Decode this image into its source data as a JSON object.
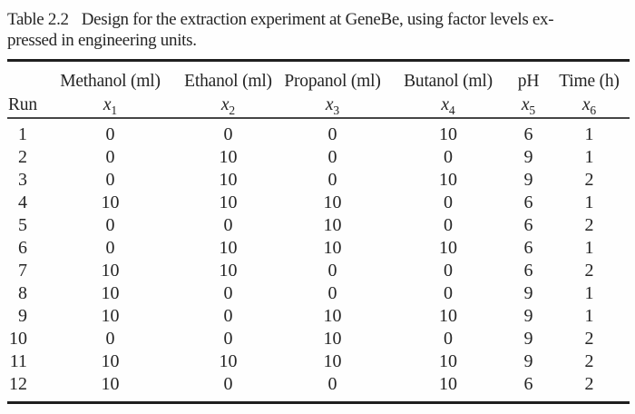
{
  "caption": {
    "label": "Table 2.2",
    "line1": "Design for the extraction experiment at GeneBe, using factor levels ex-",
    "line2": "pressed in engineering units."
  },
  "table": {
    "columns": [
      {
        "name": "",
        "var": "",
        "sub": "",
        "run_label": "Run"
      },
      {
        "name": "Methanol (ml)",
        "var": "x",
        "sub": "1"
      },
      {
        "name": "Ethanol (ml)",
        "var": "x",
        "sub": "2"
      },
      {
        "name": "Propanol (ml)",
        "var": "x",
        "sub": "3"
      },
      {
        "name": "Butanol (ml)",
        "var": "x",
        "sub": "4"
      },
      {
        "name": "pH",
        "var": "x",
        "sub": "5"
      },
      {
        "name": "Time (h)",
        "var": "x",
        "sub": "6"
      }
    ],
    "rows": [
      {
        "run": "1",
        "v": [
          "0",
          "0",
          "0",
          "10",
          "6",
          "1"
        ]
      },
      {
        "run": "2",
        "v": [
          "0",
          "10",
          "0",
          "0",
          "9",
          "1"
        ]
      },
      {
        "run": "3",
        "v": [
          "0",
          "10",
          "0",
          "10",
          "9",
          "2"
        ]
      },
      {
        "run": "4",
        "v": [
          "10",
          "10",
          "10",
          "0",
          "6",
          "1"
        ]
      },
      {
        "run": "5",
        "v": [
          "0",
          "0",
          "10",
          "0",
          "6",
          "2"
        ]
      },
      {
        "run": "6",
        "v": [
          "0",
          "10",
          "10",
          "10",
          "6",
          "1"
        ]
      },
      {
        "run": "7",
        "v": [
          "10",
          "10",
          "0",
          "0",
          "6",
          "2"
        ]
      },
      {
        "run": "8",
        "v": [
          "10",
          "0",
          "0",
          "0",
          "9",
          "1"
        ]
      },
      {
        "run": "9",
        "v": [
          "10",
          "0",
          "10",
          "10",
          "9",
          "1"
        ]
      },
      {
        "run": "10",
        "v": [
          "0",
          "0",
          "10",
          "0",
          "9",
          "2"
        ]
      },
      {
        "run": "11",
        "v": [
          "10",
          "10",
          "10",
          "10",
          "9",
          "2"
        ]
      },
      {
        "run": "12",
        "v": [
          "10",
          "0",
          "0",
          "10",
          "6",
          "2"
        ]
      }
    ]
  },
  "colors": {
    "text": "#242424",
    "thick_rule": "#1f1f1f",
    "thin_rule": "#454545",
    "background": "#fefefe"
  }
}
